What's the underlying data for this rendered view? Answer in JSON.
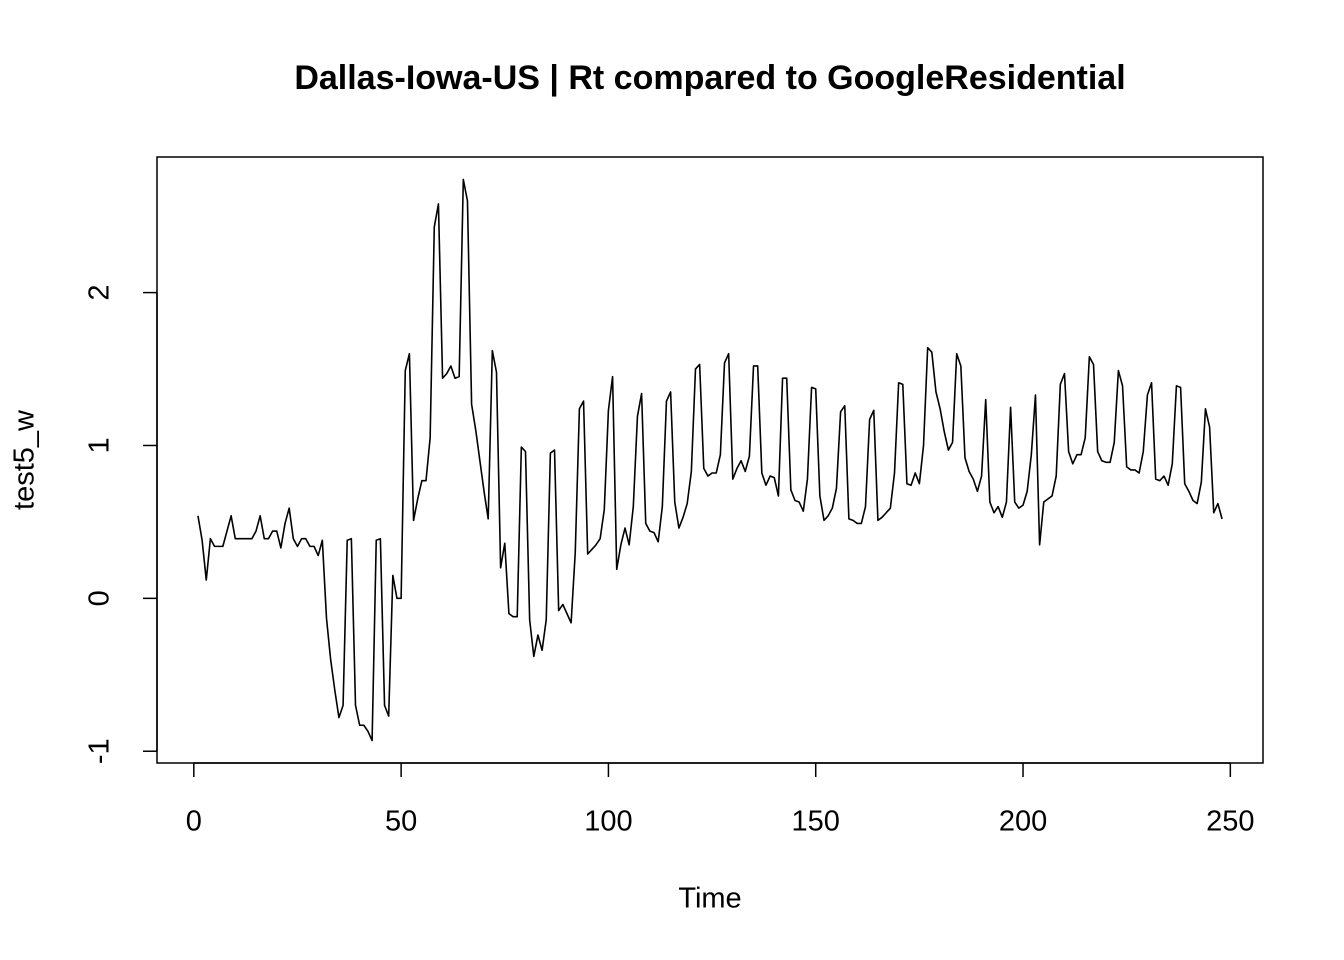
{
  "chart_data": {
    "type": "line",
    "title": "Dallas-Iowa-US | Rt compared to GoogleResidential",
    "x_label": "Time",
    "y_label": "test5_w",
    "xlim": [
      -8.88,
      257.88
    ],
    "ylim": [
      -1.077,
      2.887
    ],
    "xticks": [
      0,
      50,
      100,
      150,
      200,
      250
    ],
    "yticks": [
      -1,
      0,
      1,
      2
    ],
    "color": "#000000",
    "x": [
      1,
      2,
      3,
      4,
      5,
      6,
      7,
      8,
      9,
      10,
      11,
      12,
      13,
      14,
      15,
      16,
      17,
      18,
      19,
      20,
      21,
      22,
      23,
      24,
      25,
      26,
      27,
      28,
      29,
      30,
      31,
      32,
      33,
      34,
      35,
      36,
      37,
      38,
      39,
      40,
      41,
      42,
      43,
      44,
      45,
      46,
      47,
      48,
      49,
      50,
      51,
      52,
      53,
      54,
      55,
      56,
      57,
      58,
      59,
      60,
      61,
      62,
      63,
      64,
      65,
      66,
      67,
      68,
      69,
      70,
      71,
      72,
      73,
      74,
      75,
      76,
      77,
      78,
      79,
      80,
      81,
      82,
      83,
      84,
      85,
      86,
      87,
      88,
      89,
      90,
      91,
      92,
      93,
      94,
      95,
      96,
      97,
      98,
      99,
      100,
      101,
      102,
      103,
      104,
      105,
      106,
      107,
      108,
      109,
      110,
      111,
      112,
      113,
      114,
      115,
      116,
      117,
      118,
      119,
      120,
      121,
      122,
      123,
      124,
      125,
      126,
      127,
      128,
      129,
      130,
      131,
      132,
      133,
      134,
      135,
      136,
      137,
      138,
      139,
      140,
      141,
      142,
      143,
      144,
      145,
      146,
      147,
      148,
      149,
      150,
      151,
      152,
      153,
      154,
      155,
      156,
      157,
      158,
      159,
      160,
      161,
      162,
      163,
      164,
      165,
      166,
      167,
      168,
      169,
      170,
      171,
      172,
      173,
      174,
      175,
      176,
      177,
      178,
      179,
      180,
      181,
      182,
      183,
      184,
      185,
      186,
      187,
      188,
      189,
      190,
      191,
      192,
      193,
      194,
      195,
      196,
      197,
      198,
      199,
      200,
      201,
      202,
      203,
      204,
      205,
      206,
      207,
      208,
      209,
      210,
      211,
      212,
      213,
      214,
      215,
      216,
      217,
      218,
      219,
      220,
      221,
      222,
      223,
      224,
      225,
      226,
      227,
      228,
      229,
      230,
      231,
      232,
      233,
      234,
      235,
      236,
      237,
      238,
      239,
      240,
      241,
      242,
      243,
      244,
      245,
      246,
      247,
      248
    ],
    "values": [
      0.54,
      0.38,
      0.12,
      0.39,
      0.34,
      0.34,
      0.34,
      0.44,
      0.54,
      0.39,
      0.39,
      0.39,
      0.39,
      0.39,
      0.44,
      0.54,
      0.39,
      0.39,
      0.44,
      0.44,
      0.33,
      0.49,
      0.59,
      0.39,
      0.34,
      0.39,
      0.39,
      0.34,
      0.34,
      0.28,
      0.38,
      -0.13,
      -0.4,
      -0.6,
      -0.78,
      -0.7,
      0.38,
      0.39,
      -0.7,
      -0.83,
      -0.83,
      -0.87,
      -0.93,
      0.38,
      0.39,
      -0.7,
      -0.77,
      0.15,
      0.0,
      0.0,
      1.49,
      1.6,
      0.51,
      0.65,
      0.77,
      0.77,
      1.05,
      2.43,
      2.58,
      1.44,
      1.47,
      1.52,
      1.44,
      1.45,
      2.74,
      2.6,
      1.27,
      1.1,
      0.9,
      0.7,
      0.52,
      1.62,
      1.48,
      0.2,
      0.36,
      -0.1,
      -0.12,
      -0.12,
      0.99,
      0.96,
      -0.14,
      -0.38,
      -0.24,
      -0.34,
      -0.14,
      0.95,
      0.97,
      -0.08,
      -0.04,
      -0.1,
      -0.16,
      0.3,
      1.24,
      1.29,
      0.29,
      0.32,
      0.35,
      0.39,
      0.58,
      1.23,
      1.45,
      0.19,
      0.35,
      0.46,
      0.35,
      0.6,
      1.19,
      1.34,
      0.49,
      0.44,
      0.43,
      0.37,
      0.6,
      1.29,
      1.35,
      0.63,
      0.46,
      0.53,
      0.62,
      0.83,
      1.5,
      1.53,
      0.85,
      0.8,
      0.82,
      0.82,
      0.94,
      1.54,
      1.6,
      0.78,
      0.85,
      0.9,
      0.83,
      0.93,
      1.52,
      1.52,
      0.82,
      0.74,
      0.8,
      0.79,
      0.67,
      1.44,
      1.44,
      0.71,
      0.64,
      0.63,
      0.57,
      0.78,
      1.38,
      1.37,
      0.67,
      0.51,
      0.54,
      0.59,
      0.72,
      1.22,
      1.26,
      0.52,
      0.51,
      0.49,
      0.49,
      0.6,
      1.17,
      1.23,
      0.51,
      0.53,
      0.56,
      0.59,
      0.82,
      1.41,
      1.4,
      0.75,
      0.74,
      0.82,
      0.75,
      1.0,
      1.64,
      1.61,
      1.35,
      1.24,
      1.09,
      0.97,
      1.02,
      1.6,
      1.52,
      0.92,
      0.83,
      0.78,
      0.7,
      0.8,
      1.3,
      0.63,
      0.56,
      0.6,
      0.53,
      0.63,
      1.25,
      0.63,
      0.59,
      0.61,
      0.7,
      0.94,
      1.33,
      0.35,
      0.63,
      0.65,
      0.67,
      0.8,
      1.4,
      1.47,
      0.96,
      0.88,
      0.94,
      0.94,
      1.05,
      1.58,
      1.53,
      0.96,
      0.9,
      0.89,
      0.89,
      1.02,
      1.49,
      1.39,
      0.86,
      0.84,
      0.84,
      0.82,
      0.96,
      1.33,
      1.41,
      0.78,
      0.77,
      0.8,
      0.74,
      0.88,
      1.39,
      1.38,
      0.75,
      0.7,
      0.64,
      0.62,
      0.76,
      1.24,
      1.12,
      0.56,
      0.62,
      0.52
    ]
  }
}
